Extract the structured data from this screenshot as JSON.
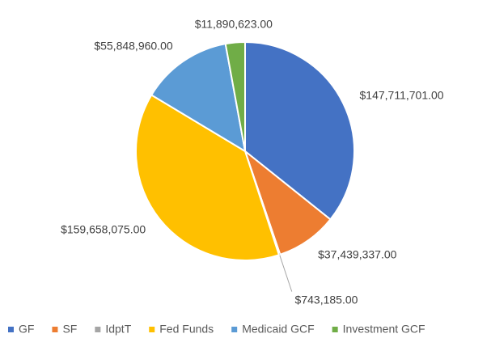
{
  "chart_data": {
    "type": "pie",
    "categories": [
      "GF",
      "SF",
      "IdptT",
      "Fed Funds",
      "Medicaid GCF",
      "Investment GCF"
    ],
    "values": [
      147711701,
      37439337,
      743185,
      159658075,
      55848960,
      11890623
    ],
    "value_labels": [
      "$147,711,701.00",
      "$37,439,337.00",
      "$743,185.00",
      "$159,658,075.00",
      "$55,848,960.00",
      "$11,890,623.00"
    ],
    "colors": [
      "#4472c4",
      "#ed7d31",
      "#a5a5a5",
      "#ffc000",
      "#5b9bd5",
      "#70ad47"
    ],
    "legend": "bottom"
  }
}
